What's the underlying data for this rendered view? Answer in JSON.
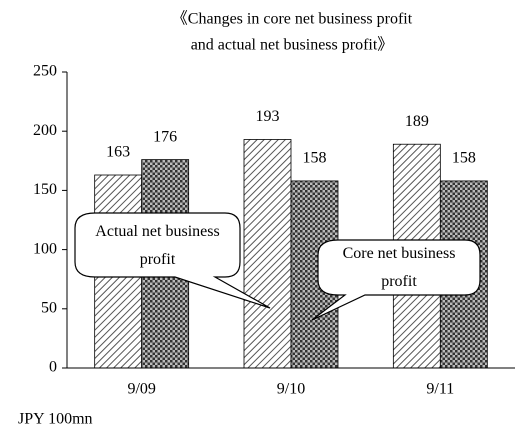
{
  "chart_data": {
    "type": "bar",
    "title": [
      "《Changes in core net business profit",
      "and actual net business profit》"
    ],
    "categories": [
      "9/09",
      "9/10",
      "9/11"
    ],
    "series": [
      {
        "name": "Actual net business profit",
        "color": "#555555",
        "values": [
          163,
          193,
          189
        ]
      },
      {
        "name": "Core net business profit",
        "color": "#333333",
        "values": [
          176,
          158,
          158
        ]
      }
    ],
    "ylim": [
      0,
      250
    ],
    "yticks": [
      0,
      50,
      100,
      150,
      200,
      250
    ],
    "unit_label": "JPY 100mn"
  }
}
